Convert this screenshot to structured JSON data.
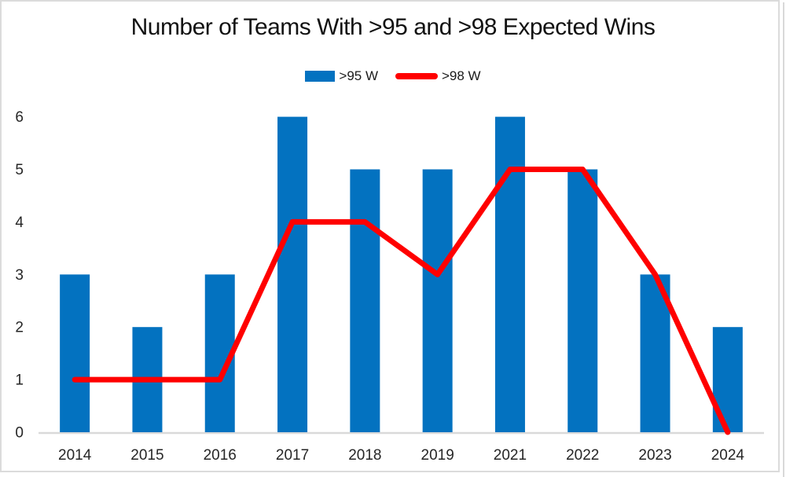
{
  "title": "Number of Teams With >95 and >98 Expected Wins",
  "legend": {
    "items": [
      {
        "label": ">95 W",
        "marker": "bar-swatch"
      },
      {
        "label": ">98 W",
        "marker": "line-swatch"
      }
    ]
  },
  "colors": {
    "bar_series": "#0372c0",
    "line_series": "#ff0000",
    "axis_line": "#d9d9d9",
    "tick_text": "#262626",
    "frame_border": "#dbdbdb"
  },
  "chart_data": {
    "type": "bar+line",
    "title": "Number of Teams With >95 and >98 Expected Wins",
    "categories": [
      "2014",
      "2015",
      "2016",
      "2017",
      "2018",
      "2019",
      "2021",
      "2022",
      "2023",
      "2024"
    ],
    "series": [
      {
        "name": ">95 W",
        "type": "bar",
        "color": "#0372c0",
        "values": [
          3,
          2,
          3,
          6,
          5,
          5,
          6,
          5,
          3,
          2
        ]
      },
      {
        "name": ">98 W",
        "type": "line",
        "color": "#ff0000",
        "values": [
          1,
          1,
          1,
          4,
          4,
          3,
          5,
          5,
          3,
          0
        ]
      }
    ],
    "xlabel": "",
    "ylabel": "",
    "ylim": [
      0,
      6
    ],
    "yticks": [
      0,
      1,
      2,
      3,
      4,
      5,
      6
    ],
    "gridlines": false,
    "legend_position": "top-center"
  }
}
